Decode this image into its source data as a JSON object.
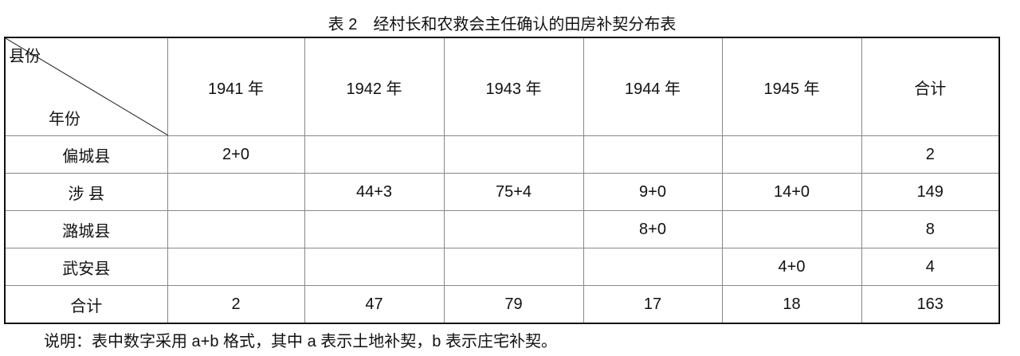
{
  "title": "表 2　经村长和农救会主任确认的田房补契分布表",
  "table": {
    "corner": {
      "top": "县份",
      "bottom": "年份"
    },
    "columns": [
      "1941 年",
      "1942 年",
      "1943 年",
      "1944 年",
      "1945 年",
      "合计"
    ],
    "rows": [
      {
        "label": "偏城县",
        "cells": [
          "2+0",
          "",
          "",
          "",
          "",
          "2"
        ]
      },
      {
        "label": "涉 县",
        "cells": [
          "",
          "44+3",
          "75+4",
          "9+0",
          "14+0",
          "149"
        ]
      },
      {
        "label": "潞城县",
        "cells": [
          "",
          "",
          "",
          "8+0",
          "",
          "8"
        ]
      },
      {
        "label": "武安县",
        "cells": [
          "",
          "",
          "",
          "",
          "4+0",
          "4"
        ]
      },
      {
        "label": "合计",
        "cells": [
          "2",
          "47",
          "79",
          "17",
          "18",
          "163"
        ]
      }
    ]
  },
  "note": "说明：表中数字采用 a+b 格式，其中 a 表示土地补契，b 表示庄宅补契。"
}
